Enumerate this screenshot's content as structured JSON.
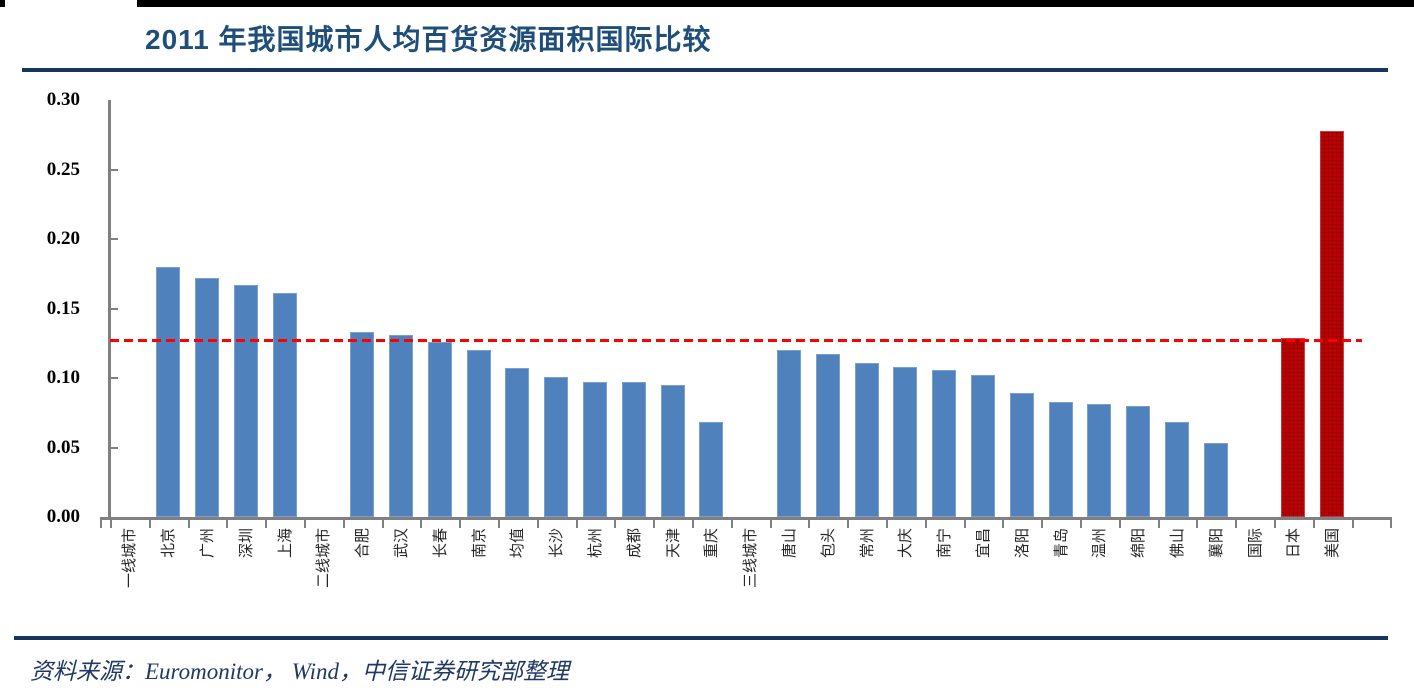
{
  "page": {
    "title": "2011 年我国城市人均百货资源面积国际比较",
    "source_note": "资料来源：Euromonitor， Wind，中信证券研究部整理"
  },
  "colors": {
    "title": "#1F4E79",
    "rule": "#17365D",
    "axis": "#808080",
    "bar_blue": "#4F81BD",
    "bar_red": "#C00000",
    "reference_line": "#FF0000",
    "tick_label": "#000000"
  },
  "chart_data": {
    "type": "bar",
    "title": "2011 年我国城市人均百货资源面积国际比较",
    "xlabel": "",
    "ylabel": "",
    "ylim": [
      0,
      0.3
    ],
    "grid": false,
    "legend": false,
    "yticks": [
      "0.00",
      "0.05",
      "0.10",
      "0.15",
      "0.20",
      "0.25",
      "0.30"
    ],
    "reference_line": {
      "value": 0.127,
      "style": "dashed",
      "color": "#FF0000"
    },
    "categories": [
      {
        "label": "一线城市",
        "value": null,
        "color": "blue",
        "role": "group-header"
      },
      {
        "label": "北京",
        "value": 0.18,
        "color": "blue"
      },
      {
        "label": "广州",
        "value": 0.172,
        "color": "blue"
      },
      {
        "label": "深圳",
        "value": 0.167,
        "color": "blue"
      },
      {
        "label": "上海",
        "value": 0.161,
        "color": "blue"
      },
      {
        "label": "二线城市",
        "value": null,
        "color": "blue",
        "role": "group-header"
      },
      {
        "label": "合肥",
        "value": 0.133,
        "color": "blue"
      },
      {
        "label": "武汉",
        "value": 0.131,
        "color": "blue"
      },
      {
        "label": "长春",
        "value": 0.126,
        "color": "blue"
      },
      {
        "label": "南京",
        "value": 0.12,
        "color": "blue"
      },
      {
        "label": "均值",
        "value": 0.107,
        "color": "blue"
      },
      {
        "label": "长沙",
        "value": 0.101,
        "color": "blue"
      },
      {
        "label": "杭州",
        "value": 0.097,
        "color": "blue"
      },
      {
        "label": "成都",
        "value": 0.097,
        "color": "blue"
      },
      {
        "label": "天津",
        "value": 0.095,
        "color": "blue"
      },
      {
        "label": "重庆",
        "value": 0.068,
        "color": "blue"
      },
      {
        "label": "三线城市",
        "value": null,
        "color": "blue",
        "role": "group-header"
      },
      {
        "label": "唐山",
        "value": 0.12,
        "color": "blue"
      },
      {
        "label": "包头",
        "value": 0.117,
        "color": "blue"
      },
      {
        "label": "常州",
        "value": 0.111,
        "color": "blue"
      },
      {
        "label": "大庆",
        "value": 0.108,
        "color": "blue"
      },
      {
        "label": "南宁",
        "value": 0.106,
        "color": "blue"
      },
      {
        "label": "宜昌",
        "value": 0.102,
        "color": "blue"
      },
      {
        "label": "洛阳",
        "value": 0.089,
        "color": "blue"
      },
      {
        "label": "青岛",
        "value": 0.083,
        "color": "blue"
      },
      {
        "label": "温州",
        "value": 0.081,
        "color": "blue"
      },
      {
        "label": "绵阳",
        "value": 0.08,
        "color": "blue"
      },
      {
        "label": "佛山",
        "value": 0.068,
        "color": "blue"
      },
      {
        "label": "襄阳",
        "value": 0.053,
        "color": "blue"
      },
      {
        "label": "国际",
        "value": null,
        "color": "red",
        "role": "group-header"
      },
      {
        "label": "日本",
        "value": 0.129,
        "color": "red"
      },
      {
        "label": "美国",
        "value": 0.278,
        "color": "red"
      }
    ]
  }
}
